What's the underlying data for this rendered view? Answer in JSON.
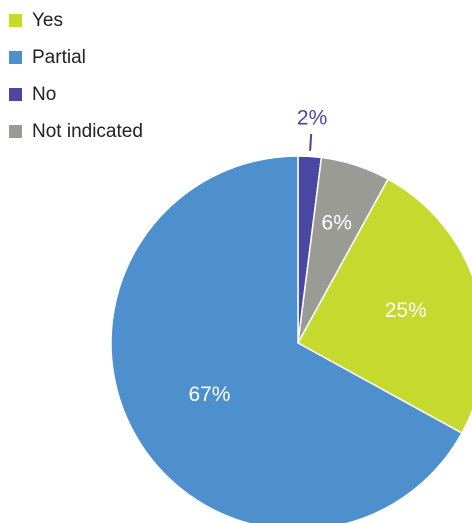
{
  "chart_data": {
    "type": "pie",
    "categories": [
      "Yes",
      "Partial",
      "No",
      "Not indicated"
    ],
    "values": [
      25,
      67,
      2,
      6
    ],
    "value_labels": [
      "25%",
      "67%",
      "2%",
      "6%"
    ],
    "colors": [
      "#c6d92e",
      "#4e90cd",
      "#4a47a3",
      "#9b9b96"
    ],
    "legend": "top-left"
  }
}
